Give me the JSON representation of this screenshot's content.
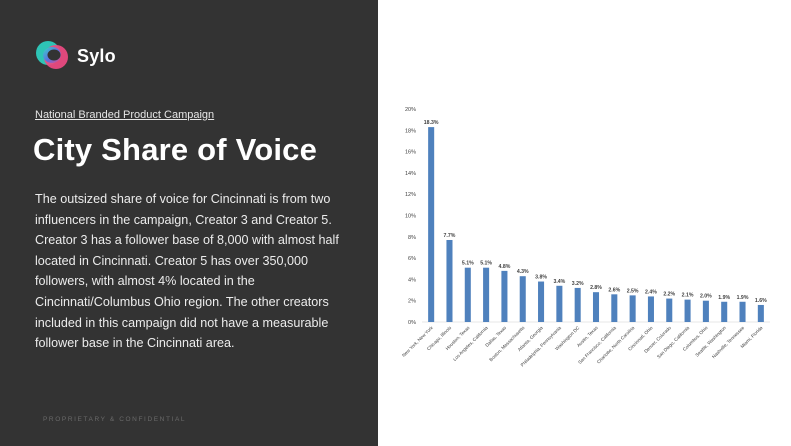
{
  "brand": {
    "name": "Sylo",
    "logo_icon": "sylo-logo-icon",
    "colors": {
      "teal": "#2ec4b6",
      "pink": "#e8457c",
      "purple": "#6a4fd3"
    }
  },
  "slide": {
    "subtitle": "National Branded Product Campaign",
    "title": "City Share of Voice",
    "body": "The outsized share of voice for Cincinnati is from two influencers in the campaign, Creator 3 and Creator 5. Creator 3 has a follower base of 8,000 with almost half located in Cincinnati. Creator 5 has over 350,000 followers, with almost 4% located in the Cincinnati/Columbus Ohio region. The other creators included in this campaign did not have a measurable follower base in the Cincinnati area.",
    "footer": "PROPRIETARY & CONFIDENTIAL"
  },
  "chart_data": {
    "type": "bar",
    "title": "",
    "xlabel": "",
    "ylabel": "",
    "ylim": [
      0,
      20
    ],
    "yticks": [
      "0%",
      "2%",
      "4%",
      "6%",
      "8%",
      "10%",
      "12%",
      "14%",
      "16%",
      "18%",
      "20%"
    ],
    "grid": false,
    "bar_color": "#4f81bd",
    "categories": [
      "New York, New York",
      "Chicago, Illinois",
      "Houston, Texas",
      "Los Angeles, California",
      "Dallas, Texas",
      "Boston, Massachusetts",
      "Atlanta, Georgia",
      "Philadelphia, Pennsylvania",
      "Washington DC",
      "Austin, Texas",
      "San Francisco, California",
      "Charlotte, North Carolina",
      "Cincinnati, Ohio",
      "Denver, Colorado",
      "San Diego, California",
      "Columbus, Ohio",
      "Seattle, Washington",
      "Nashville, Tennessee",
      "Miami, Florida"
    ],
    "values": [
      18.3,
      7.7,
      5.1,
      5.1,
      4.8,
      4.3,
      3.8,
      3.4,
      3.2,
      2.8,
      2.6,
      2.5,
      2.4,
      2.2,
      2.1,
      2.0,
      1.9,
      1.9,
      1.6
    ],
    "labels": [
      "18.3%",
      "7.7%",
      "5.1%",
      "5.1%",
      "4.8%",
      "4.3%",
      "3.8%",
      "3.4%",
      "3.2%",
      "2.8%",
      "2.6%",
      "2.5%",
      "2.4%",
      "2.2%",
      "2.1%",
      "2.0%",
      "1.9%",
      "1.9%",
      "1.6%"
    ]
  }
}
